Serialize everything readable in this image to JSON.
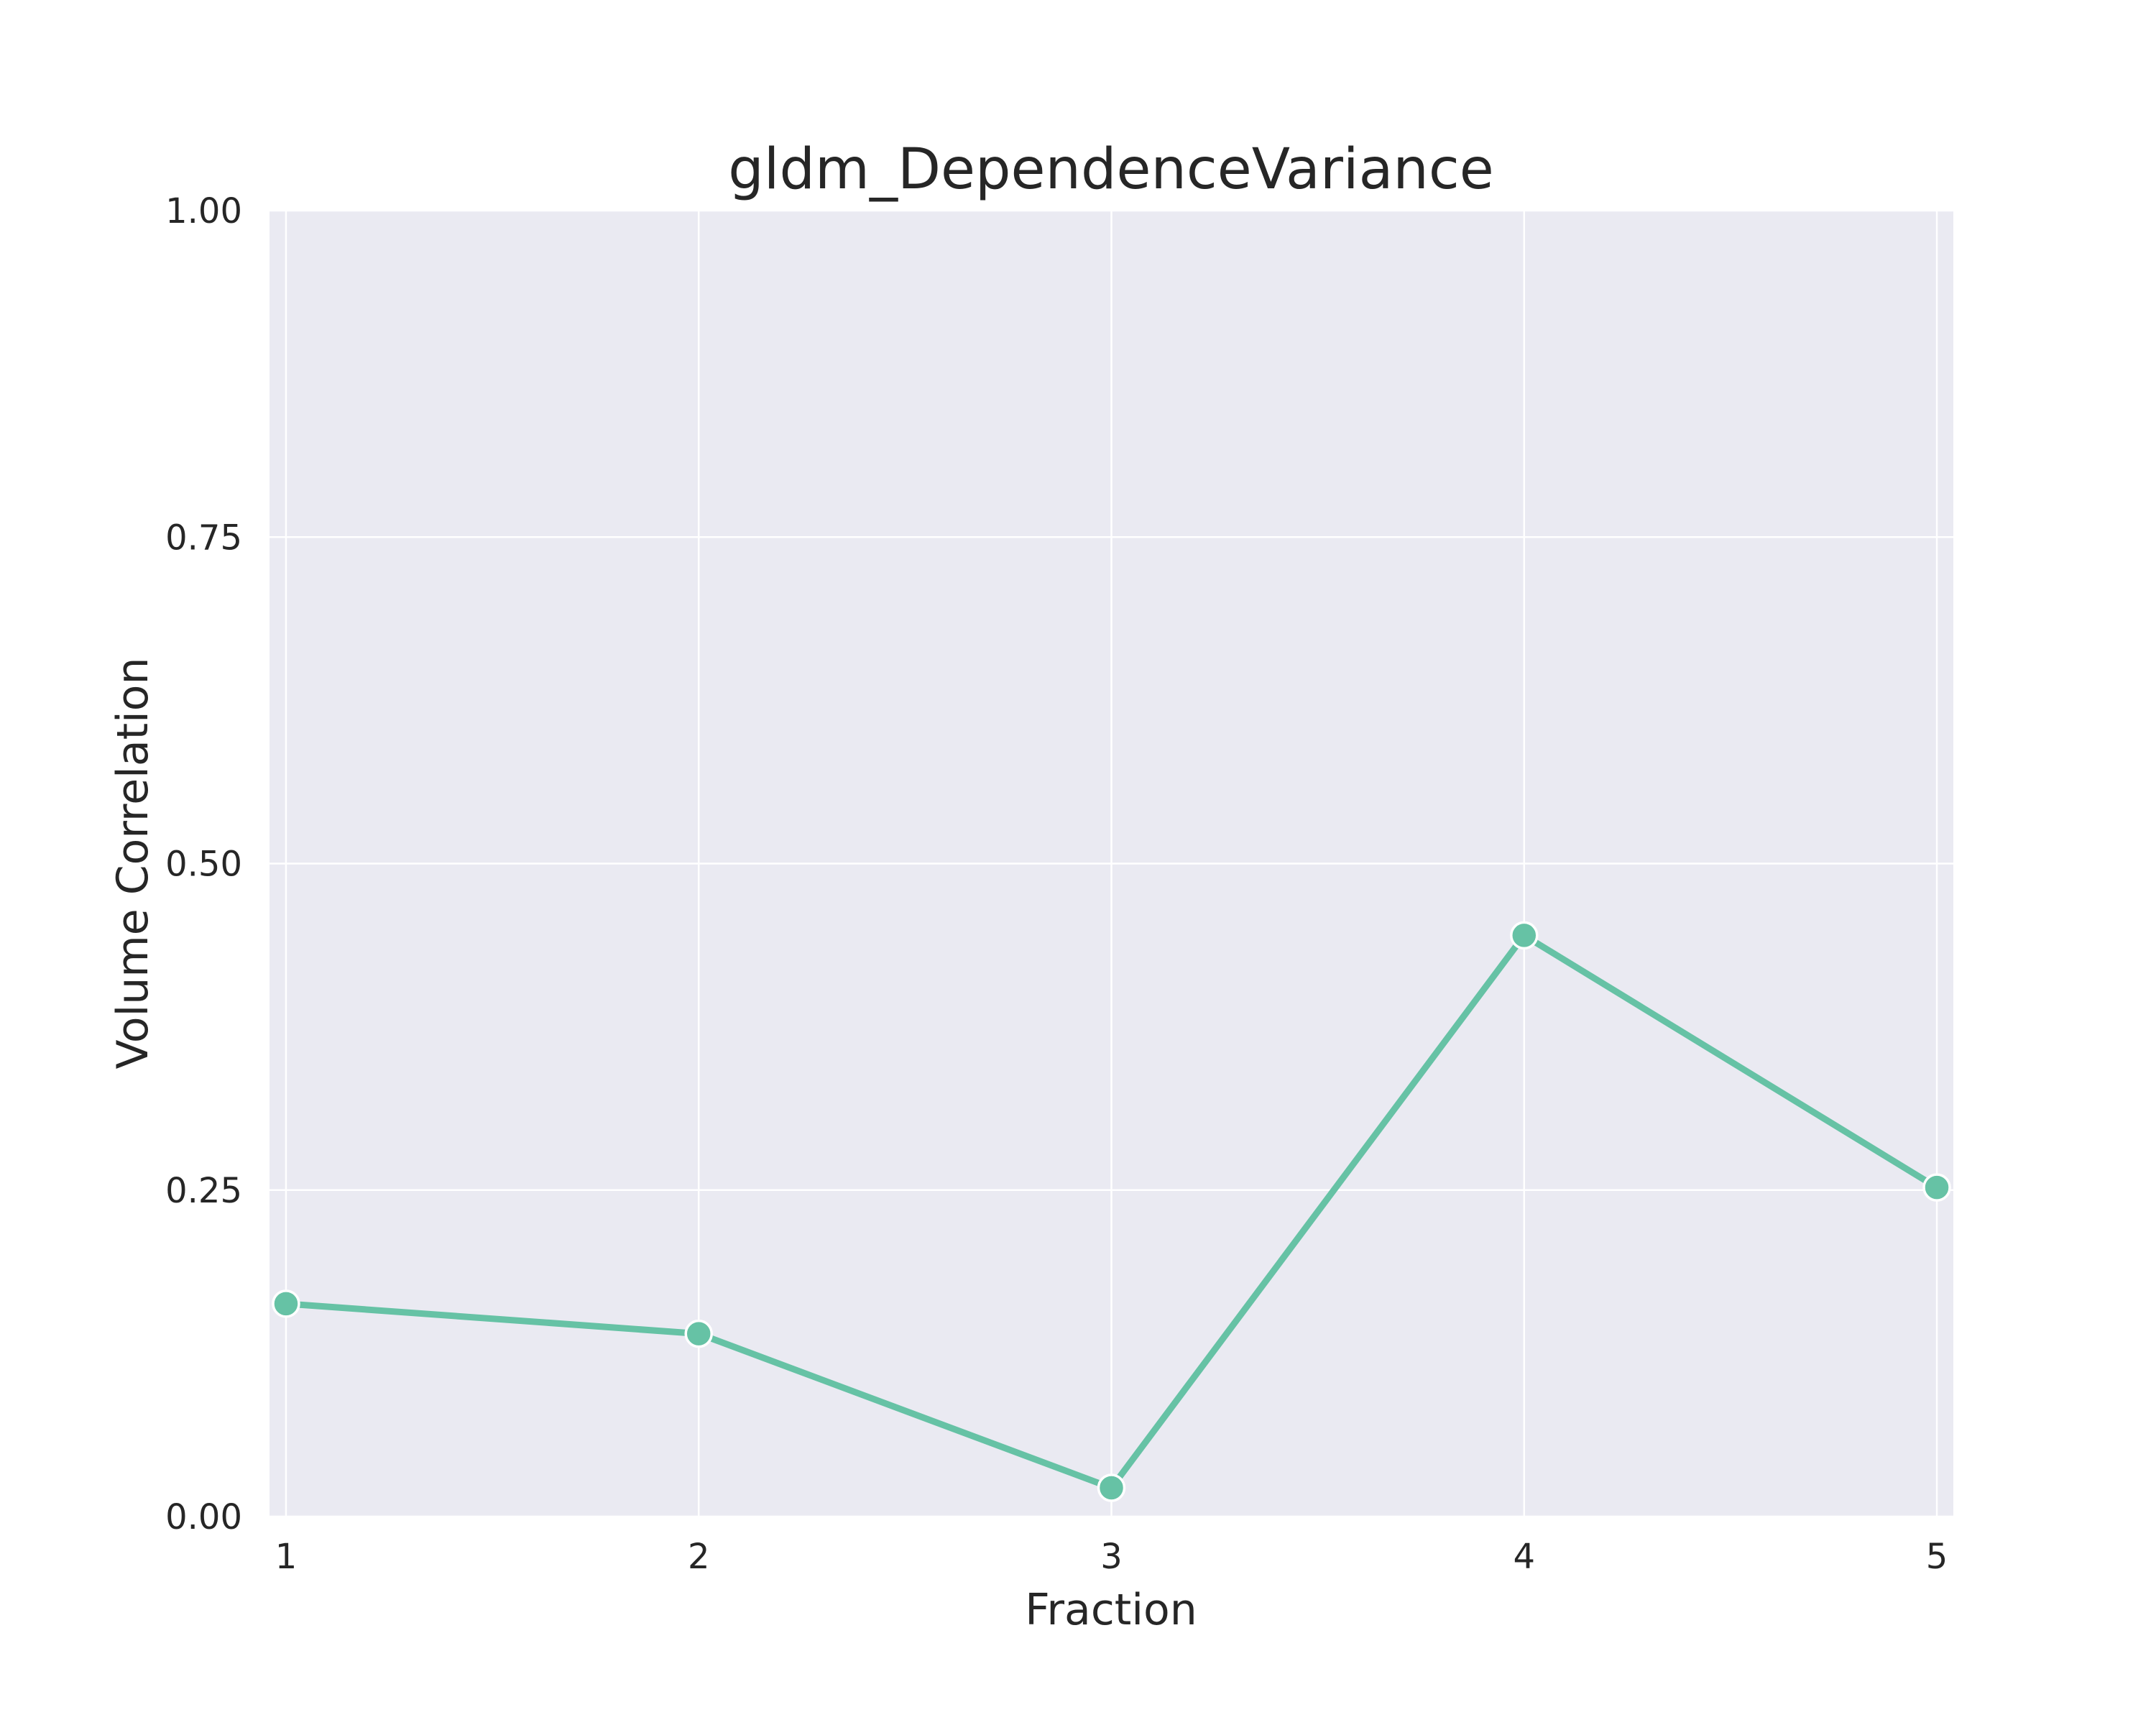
{
  "chart_data": {
    "type": "line",
    "title": "gldm_DependenceVariance",
    "xlabel": "Fraction",
    "ylabel": "Volume Correlation",
    "x": [
      1,
      2,
      3,
      4,
      5
    ],
    "x_tick_labels": [
      "1",
      "2",
      "3",
      "4",
      "5"
    ],
    "y_tick_labels": [
      "0.00",
      "0.25",
      "0.50",
      "0.75",
      "1.00"
    ],
    "y_ticks": [
      0,
      0.25,
      0.5,
      0.75,
      1.0
    ],
    "xlim": [
      0.96,
      5.04
    ],
    "ylim": [
      0,
      1
    ],
    "grid": true,
    "series": [
      {
        "values": [
          0.163,
          0.14,
          0.022,
          0.445,
          0.252
        ],
        "color": "#66c2a5",
        "marker": "circle"
      }
    ],
    "colors": {
      "background": "#eaeaf2",
      "grid": "#ffffff",
      "text": "#262626"
    }
  }
}
